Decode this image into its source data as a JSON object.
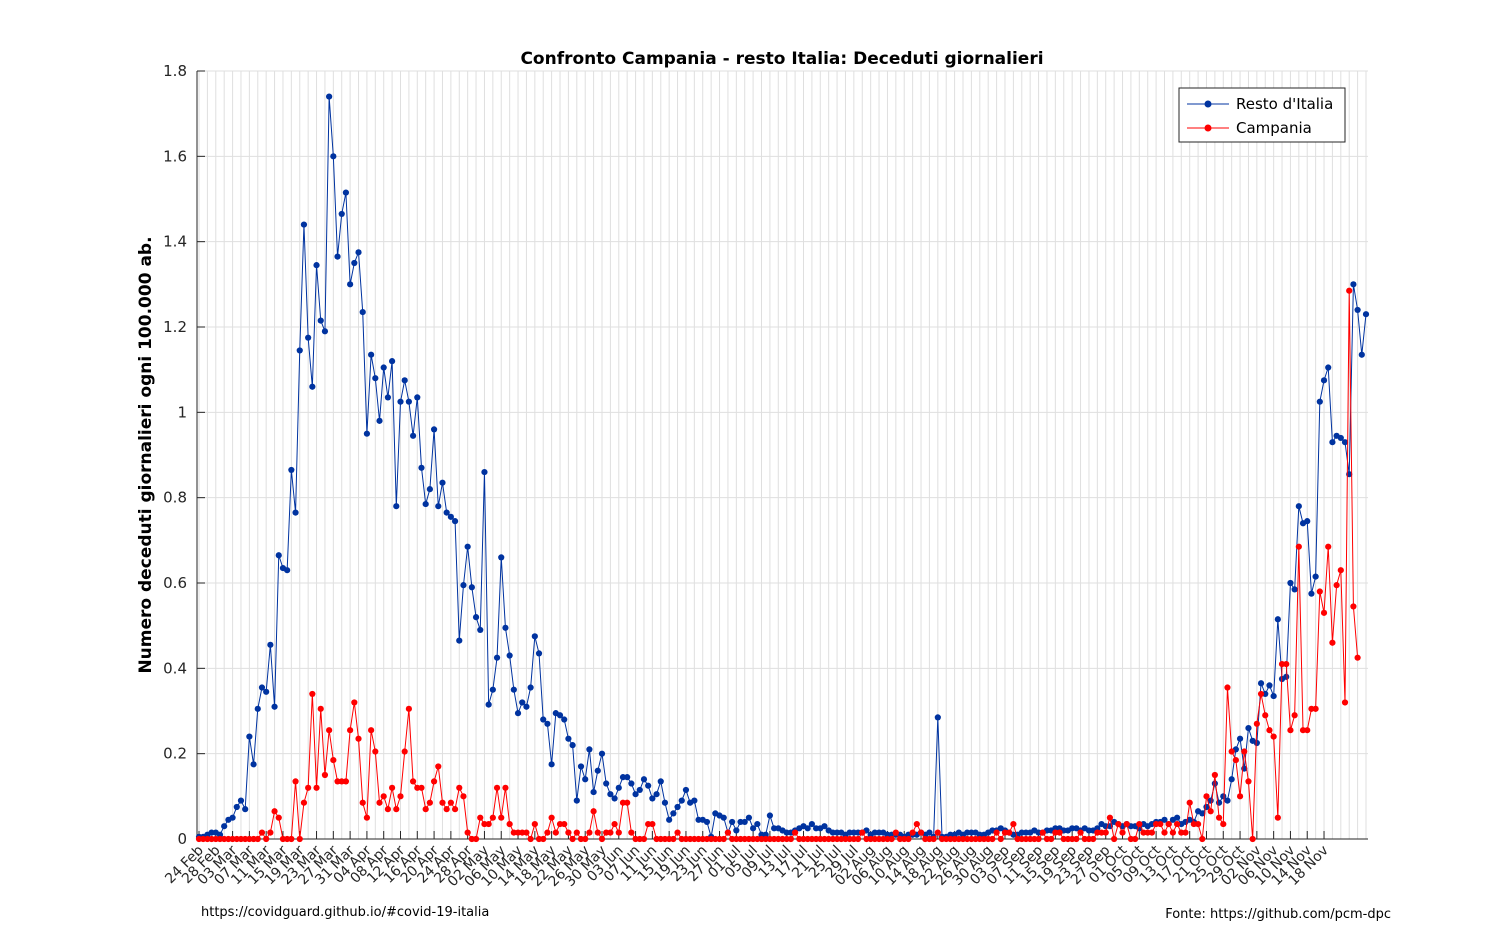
{
  "chart_data": {
    "type": "line",
    "title": "Confronto Campania - resto Italia: Deceduti giornalieri",
    "ylabel": "Numero deceduti giornalieri ogni 100.000 ab.",
    "xlabel": "",
    "ylim": [
      0,
      1.8
    ],
    "yticks": [
      0,
      0.2,
      0.4,
      0.6,
      0.8,
      1,
      1.2,
      1.4,
      1.6,
      1.8
    ],
    "ytick_labels": [
      "0",
      "0.2",
      "0.4",
      "0.6",
      "0.8",
      "1",
      "1.2",
      "1.4",
      "1.6",
      "1.8"
    ],
    "start_date": "2020-02-24",
    "xtick_labels": [
      "24 Feb",
      "28 Feb",
      "03 Mar",
      "07 Mar",
      "11 Mar",
      "15 Mar",
      "19 Mar",
      "23 Mar",
      "27 Mar",
      "31 Mar",
      "04 Apr",
      "08 Apr",
      "12 Apr",
      "16 Apr",
      "20 Apr",
      "24 Apr",
      "28 Apr",
      "02 May",
      "06 May",
      "10 May",
      "14 May",
      "18 May",
      "22 May",
      "26 May",
      "30 May",
      "03 Jun",
      "07 Jun",
      "11 Jun",
      "15 Jun",
      "19 Jun",
      "23 Jun",
      "27 Jun",
      "01 Jul",
      "05 Jul",
      "09 Jul",
      "13 Jul",
      "17 Jul",
      "21 Jul",
      "25 Jul",
      "29 Jul",
      "02 Aug",
      "06 Aug",
      "10 Aug",
      "14 Aug",
      "18 Aug",
      "22 Aug",
      "26 Aug",
      "30 Aug",
      "03 Sep",
      "07 Sep",
      "11 Sep",
      "15 Sep",
      "19 Sep",
      "23 Sep",
      "27 Sep",
      "01 Oct",
      "05 Oct",
      "09 Oct",
      "13 Oct",
      "17 Oct",
      "21 Oct",
      "25 Oct",
      "29 Oct",
      "02 Nov",
      "06 Nov",
      "10 Nov",
      "14 Nov",
      "18 Nov"
    ],
    "grid": true,
    "legend_position": "top-right",
    "series": [
      {
        "name": "Resto d'Italia",
        "color": "#0033A0",
        "values": [
          0.005,
          0.005,
          0.01,
          0.015,
          0.015,
          0.01,
          0.03,
          0.045,
          0.05,
          0.075,
          0.09,
          0.07,
          0.24,
          0.175,
          0.305,
          0.355,
          0.345,
          0.455,
          0.31,
          0.665,
          0.635,
          0.63,
          0.865,
          0.765,
          1.145,
          1.44,
          1.175,
          1.06,
          1.345,
          1.215,
          1.19,
          1.74,
          1.6,
          1.365,
          1.465,
          1.515,
          1.3,
          1.35,
          1.375,
          1.235,
          0.95,
          1.135,
          1.08,
          0.98,
          1.105,
          1.035,
          1.12,
          0.78,
          1.025,
          1.075,
          1.025,
          0.945,
          1.035,
          0.87,
          0.785,
          0.82,
          0.96,
          0.78,
          0.835,
          0.765,
          0.755,
          0.745,
          0.465,
          0.595,
          0.685,
          0.59,
          0.52,
          0.49,
          0.86,
          0.315,
          0.35,
          0.425,
          0.66,
          0.495,
          0.43,
          0.35,
          0.295,
          0.32,
          0.31,
          0.355,
          0.475,
          0.435,
          0.28,
          0.27,
          0.175,
          0.295,
          0.29,
          0.28,
          0.235,
          0.22,
          0.09,
          0.17,
          0.14,
          0.21,
          0.11,
          0.16,
          0.2,
          0.13,
          0.105,
          0.095,
          0.12,
          0.145,
          0.145,
          0.13,
          0.105,
          0.115,
          0.14,
          0.125,
          0.095,
          0.105,
          0.135,
          0.085,
          0.045,
          0.06,
          0.075,
          0.09,
          0.115,
          0.085,
          0.09,
          0.045,
          0.045,
          0.04,
          0.005,
          0.06,
          0.055,
          0.05,
          0.015,
          0.04,
          0.02,
          0.04,
          0.04,
          0.05,
          0.025,
          0.035,
          0.01,
          0.01,
          0.055,
          0.025,
          0.025,
          0.02,
          0.015,
          0.015,
          0.02,
          0.025,
          0.03,
          0.025,
          0.035,
          0.025,
          0.025,
          0.03,
          0.02,
          0.015,
          0.015,
          0.015,
          0.01,
          0.015,
          0.015,
          0.015,
          0.015,
          0.02,
          0.01,
          0.015,
          0.015,
          0.015,
          0.01,
          0.01,
          0.01,
          0.01,
          0.005,
          0.01,
          0.01,
          0.01,
          0.015,
          0.01,
          0.015,
          0.005,
          0.285,
          0.005,
          0.005,
          0.01,
          0.01,
          0.015,
          0.01,
          0.015,
          0.015,
          0.015,
          0.01,
          0.01,
          0.015,
          0.02,
          0.02,
          0.025,
          0.02,
          0.015,
          0.01,
          0.01,
          0.015,
          0.015,
          0.015,
          0.02,
          0.015,
          0.015,
          0.02,
          0.02,
          0.025,
          0.025,
          0.02,
          0.02,
          0.025,
          0.025,
          0.02,
          0.025,
          0.02,
          0.02,
          0.025,
          0.035,
          0.03,
          0.03,
          0.04,
          0.035,
          0.03,
          0.035,
          0.03,
          0.03,
          0.025,
          0.035,
          0.03,
          0.035,
          0.04,
          0.04,
          0.045,
          0.035,
          0.045,
          0.05,
          0.035,
          0.04,
          0.045,
          0.04,
          0.065,
          0.06,
          0.075,
          0.09,
          0.13,
          0.085,
          0.1,
          0.09,
          0.14,
          0.21,
          0.235,
          0.165,
          0.26,
          0.23,
          0.225,
          0.365,
          0.34,
          0.36,
          0.335,
          0.515,
          0.375,
          0.38,
          0.6,
          0.585,
          0.78,
          0.74,
          0.745,
          0.575,
          0.615,
          1.025,
          1.075,
          1.105,
          0.93,
          0.945,
          0.94,
          0.93,
          0.855,
          1.3,
          1.24,
          1.135,
          1.23
        ]
      },
      {
        "name": "Campania",
        "color": "#FF0000",
        "values": [
          0,
          0,
          0,
          0,
          0,
          0,
          0,
          0,
          0,
          0,
          0,
          0,
          0,
          0,
          0,
          0.015,
          0,
          0.015,
          0.065,
          0.05,
          0,
          0,
          0,
          0.135,
          0,
          0.085,
          0.12,
          0.34,
          0.12,
          0.305,
          0.15,
          0.255,
          0.185,
          0.135,
          0.135,
          0.135,
          0.255,
          0.32,
          0.235,
          0.085,
          0.05,
          0.255,
          0.205,
          0.085,
          0.1,
          0.07,
          0.12,
          0.07,
          0.1,
          0.205,
          0.305,
          0.135,
          0.12,
          0.12,
          0.07,
          0.085,
          0.135,
          0.17,
          0.085,
          0.07,
          0.085,
          0.07,
          0.12,
          0.1,
          0.015,
          0,
          0,
          0.05,
          0.035,
          0.035,
          0.05,
          0.12,
          0.05,
          0.12,
          0.035,
          0.015,
          0.015,
          0.015,
          0.015,
          0,
          0.035,
          0,
          0,
          0.015,
          0.05,
          0.015,
          0.035,
          0.035,
          0.015,
          0,
          0.015,
          0,
          0,
          0.015,
          0.065,
          0.015,
          0,
          0.015,
          0.015,
          0.035,
          0.015,
          0.085,
          0.085,
          0.015,
          0,
          0,
          0,
          0.035,
          0.035,
          0,
          0,
          0,
          0,
          0,
          0.015,
          0,
          0,
          0,
          0,
          0,
          0,
          0,
          0,
          0,
          0,
          0,
          0.015,
          0,
          0,
          0,
          0,
          0,
          0,
          0,
          0,
          0,
          0,
          0,
          0,
          0,
          0,
          0,
          0.015,
          0,
          0,
          0,
          0,
          0,
          0,
          0,
          0,
          0,
          0,
          0,
          0,
          0,
          0,
          0,
          0.015,
          0,
          0,
          0,
          0,
          0,
          0,
          0,
          0.015,
          0,
          0,
          0,
          0.015,
          0.035,
          0.015,
          0,
          0,
          0,
          0.015,
          0,
          0,
          0,
          0,
          0,
          0,
          0,
          0,
          0,
          0,
          0,
          0,
          0,
          0.015,
          0,
          0.015,
          0.015,
          0.035,
          0,
          0,
          0,
          0,
          0,
          0,
          0.015,
          0,
          0,
          0.015,
          0.015,
          0,
          0,
          0,
          0,
          0.015,
          0,
          0,
          0,
          0.015,
          0.015,
          0.015,
          0.05,
          0,
          0.035,
          0.015,
          0.035,
          0,
          0,
          0.035,
          0.015,
          0.015,
          0.015,
          0.035,
          0.035,
          0.015,
          0.035,
          0.015,
          0.035,
          0.015,
          0.015,
          0.085,
          0.035,
          0.035,
          0,
          0.1,
          0.065,
          0.15,
          0.05,
          0.035,
          0.355,
          0.205,
          0.185,
          0.1,
          0.205,
          0.135,
          0,
          0.27,
          0.34,
          0.29,
          0.255,
          0.24,
          0.05,
          0.41,
          0.41,
          0.255,
          0.29,
          0.685,
          0.255,
          0.255,
          0.305,
          0.305,
          0.58,
          0.53,
          0.685,
          0.46,
          0.595,
          0.63,
          0.32,
          1.285,
          0.545,
          0.425
        ]
      }
    ],
    "footer_left": "https://covidguard.github.io/#covid-19-italia",
    "footer_right": "Fonte: https://github.com/pcm-dpc"
  }
}
